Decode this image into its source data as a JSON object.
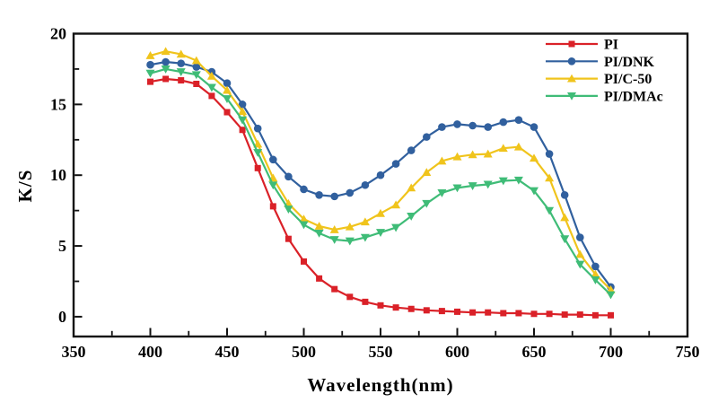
{
  "chart_data": {
    "type": "line",
    "title": "",
    "xlabel": "Wavelength(nm)",
    "ylabel": "K/S",
    "xlim": [
      350,
      750
    ],
    "ylim": [
      -1.4,
      20
    ],
    "x_major_ticks": [
      350,
      400,
      450,
      500,
      550,
      600,
      650,
      700,
      750
    ],
    "x_minor_ticks": [
      375,
      425,
      475,
      525,
      575,
      625,
      675,
      725
    ],
    "y_major_ticks": [
      0,
      5,
      10,
      15,
      20
    ],
    "y_minor_ticks": [
      2.5,
      7.5,
      12.5,
      17.5
    ],
    "grid": false,
    "legend_position": "top-right-inside",
    "frame_color": "#111111",
    "x": [
      400,
      410,
      420,
      430,
      440,
      450,
      460,
      470,
      480,
      490,
      500,
      510,
      520,
      530,
      540,
      550,
      560,
      570,
      580,
      590,
      600,
      610,
      620,
      630,
      640,
      650,
      660,
      670,
      680,
      690,
      700
    ],
    "series": [
      {
        "name": "PI",
        "marker": "square",
        "color": "#da2128",
        "values": [
          16.6,
          16.8,
          16.7,
          16.45,
          15.6,
          14.45,
          13.2,
          10.5,
          7.8,
          5.5,
          3.9,
          2.7,
          1.95,
          1.4,
          1.05,
          0.8,
          0.65,
          0.55,
          0.45,
          0.4,
          0.35,
          0.3,
          0.3,
          0.25,
          0.25,
          0.2,
          0.2,
          0.15,
          0.15,
          0.1,
          0.1
        ]
      },
      {
        "name": "PI/DNK",
        "marker": "circle",
        "color": "#31609e",
        "values": [
          17.8,
          18.0,
          17.9,
          17.65,
          17.3,
          16.5,
          15.0,
          13.3,
          11.1,
          9.9,
          9.0,
          8.6,
          8.5,
          8.75,
          9.3,
          10.0,
          10.8,
          11.75,
          12.7,
          13.4,
          13.6,
          13.5,
          13.4,
          13.75,
          13.9,
          13.4,
          11.5,
          8.6,
          5.6,
          3.55,
          2.1
        ]
      },
      {
        "name": "PI/C-50",
        "marker": "triangle-up",
        "color": "#f0c41c",
        "values": [
          18.45,
          18.75,
          18.55,
          18.1,
          17.0,
          16.0,
          14.5,
          12.2,
          9.8,
          8.0,
          6.9,
          6.4,
          6.15,
          6.35,
          6.7,
          7.3,
          7.9,
          9.1,
          10.2,
          11.0,
          11.3,
          11.45,
          11.5,
          11.9,
          12.0,
          11.2,
          9.8,
          7.0,
          4.4,
          3.0,
          1.9
        ]
      },
      {
        "name": "PI/DMAc",
        "marker": "triangle-down",
        "color": "#3fbc77",
        "values": [
          17.2,
          17.5,
          17.3,
          17.1,
          16.2,
          15.4,
          13.9,
          11.6,
          9.3,
          7.6,
          6.5,
          5.9,
          5.45,
          5.35,
          5.6,
          5.95,
          6.3,
          7.1,
          8.0,
          8.75,
          9.1,
          9.25,
          9.35,
          9.6,
          9.65,
          8.9,
          7.5,
          5.5,
          3.7,
          2.6,
          1.55
        ]
      }
    ]
  }
}
